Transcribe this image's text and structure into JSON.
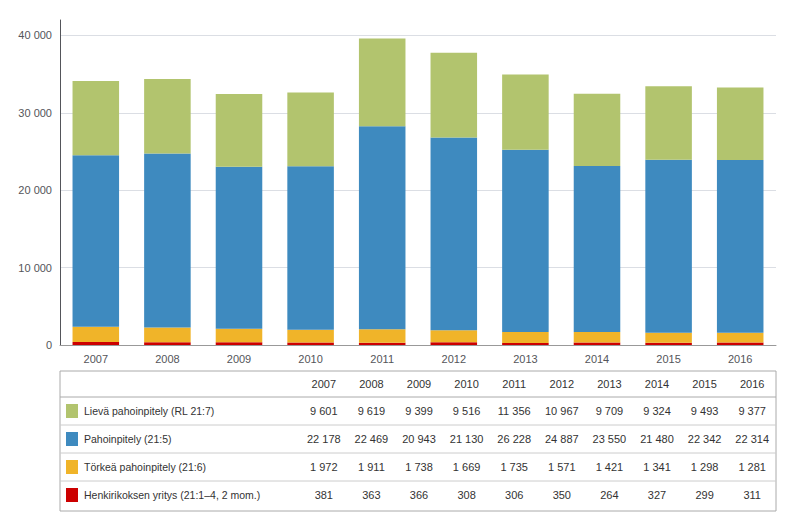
{
  "chart_data": {
    "type": "bar",
    "stacked": true,
    "grid": true,
    "categories": [
      "2007",
      "2008",
      "2009",
      "2010",
      "2011",
      "2012",
      "2013",
      "2014",
      "2015",
      "2016"
    ],
    "ylim": [
      0,
      42000
    ],
    "yticks": [
      0,
      {
        "value": 10000,
        "label": "10 000"
      },
      {
        "value": 20000,
        "label": "20 000"
      },
      {
        "value": 30000,
        "label": "30 000"
      },
      {
        "value": 40000,
        "label": "40 000"
      }
    ],
    "series": [
      {
        "name": "Henkirikoksen yritys (21:1–4, 2 mom.)",
        "color": "#cc0000",
        "values": [
          381,
          363,
          366,
          308,
          306,
          350,
          264,
          327,
          299,
          311
        ],
        "value_labels": [
          "381",
          "363",
          "366",
          "308",
          "306",
          "350",
          "264",
          "327",
          "299",
          "311"
        ]
      },
      {
        "name": "Törkeä pahoinpitely (21:6)",
        "color": "#f0b429",
        "values": [
          1972,
          1911,
          1738,
          1669,
          1735,
          1571,
          1421,
          1341,
          1298,
          1281
        ],
        "value_labels": [
          "1 972",
          "1 911",
          "1 738",
          "1 669",
          "1 735",
          "1 571",
          "1 421",
          "1 341",
          "1 298",
          "1 281"
        ]
      },
      {
        "name": "Pahoinpitely (21:5)",
        "color": "#3e8abf",
        "values": [
          22178,
          22469,
          20943,
          21130,
          26228,
          24887,
          23550,
          21480,
          22342,
          22314
        ],
        "value_labels": [
          "22 178",
          "22 469",
          "20 943",
          "21 130",
          "26 228",
          "24 887",
          "23 550",
          "21 480",
          "22 342",
          "22 314"
        ]
      },
      {
        "name": "Lievä pahoinpitely (RL 21:7)",
        "color": "#b2c46e",
        "values": [
          9601,
          9619,
          9399,
          9516,
          11356,
          10967,
          9709,
          9324,
          9493,
          9377
        ],
        "value_labels": [
          "9 601",
          "9 619",
          "9 399",
          "9 516",
          "11 356",
          "10 967",
          "9 709",
          "9 324",
          "9 493",
          "9 377"
        ]
      }
    ]
  }
}
